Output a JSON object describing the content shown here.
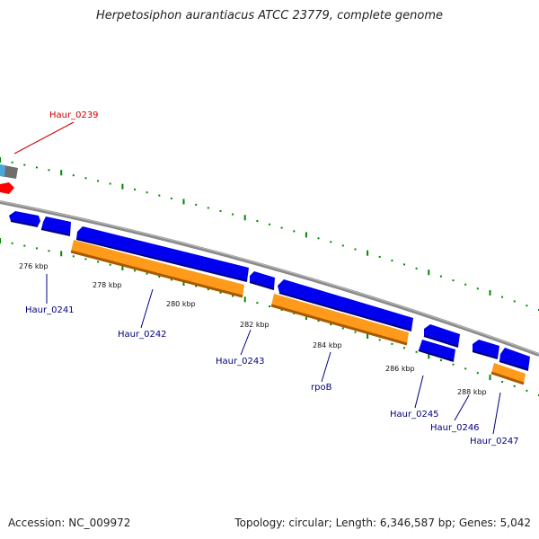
{
  "title": "Herpetosiphon aurantiacus ATCC 23779, complete genome",
  "footer": {
    "accession": "Accession: NC_009972",
    "summary": "Topology: circular; Length: 6,346,587 bp; Genes: 5,042"
  },
  "colors": {
    "backbone": "#8a8a8a",
    "forward_gene": "#0000ee",
    "reverse_gene": "#0000ee",
    "rna_or_cds": "#ff8c00",
    "highlight_gene": "#ff0000",
    "gc_skew": "#008800",
    "label_default": "#000080",
    "label_highlight": "#cc0000"
  },
  "scale_labels": [
    "276 kbp",
    "278 kbp",
    "280 kbp",
    "282 kbp",
    "284 kbp",
    "286 kbp",
    "288 kbp"
  ],
  "gene_labels": [
    {
      "id": "haur-0239",
      "text": "Haur_0239",
      "highlight": true
    },
    {
      "id": "haur-0241",
      "text": "Haur_0241",
      "highlight": false
    },
    {
      "id": "haur-0242",
      "text": "Haur_0242",
      "highlight": false
    },
    {
      "id": "haur-0243",
      "text": "Haur_0243",
      "highlight": false
    },
    {
      "id": "rpob",
      "text": "rpoB",
      "highlight": false
    },
    {
      "id": "haur-0245",
      "text": "Haur_0245",
      "highlight": false
    },
    {
      "id": "haur-0246",
      "text": "Haur_0246",
      "highlight": false
    },
    {
      "id": "haur-0247",
      "text": "Haur_0247",
      "highlight": false
    }
  ]
}
